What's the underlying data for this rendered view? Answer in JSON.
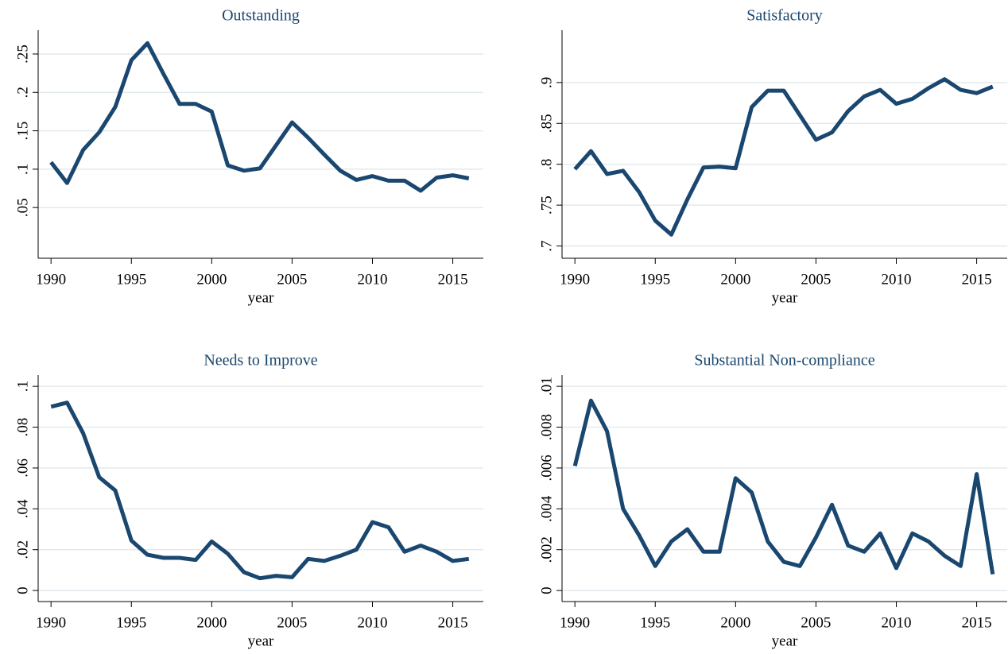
{
  "chart_data": [
    {
      "type": "line",
      "title": "Outstanding",
      "xlabel": "year",
      "color": "#1a476f",
      "grid": true,
      "x": [
        1990,
        1991,
        1992,
        1993,
        1994,
        1995,
        1996,
        1997,
        1998,
        1999,
        2000,
        2001,
        2002,
        2003,
        2004,
        2005,
        2006,
        2007,
        2008,
        2009,
        2010,
        2011,
        2012,
        2013,
        2014,
        2015,
        2016
      ],
      "values": [
        0.109,
        0.082,
        0.125,
        0.148,
        0.181,
        0.242,
        0.264,
        0.224,
        0.185,
        0.185,
        0.175,
        0.105,
        0.098,
        0.101,
        0.131,
        0.161,
        0.141,
        0.119,
        0.098,
        0.086,
        0.091,
        0.085,
        0.085,
        0.072,
        0.089,
        0.092,
        0.088
      ],
      "xlim": [
        1989.2,
        2016.9
      ],
      "xticks": [
        1990,
        1995,
        2000,
        2005,
        2010,
        2015
      ],
      "ylim": [
        -0.016,
        0.281
      ],
      "yticks": [
        {
          "value": 0.05,
          "label": ".05"
        },
        {
          "value": 0.1,
          "label": ".1"
        },
        {
          "value": 0.15,
          "label": ".15"
        },
        {
          "value": 0.2,
          "label": ".2"
        },
        {
          "value": 0.25,
          "label": ".25"
        }
      ]
    },
    {
      "type": "line",
      "title": "Satisfactory",
      "xlabel": "year",
      "color": "#1a476f",
      "grid": true,
      "x": [
        1990,
        1991,
        1992,
        1993,
        1994,
        1995,
        1996,
        1997,
        1998,
        1999,
        2000,
        2001,
        2002,
        2003,
        2004,
        2005,
        2006,
        2007,
        2008,
        2009,
        2010,
        2011,
        2012,
        2013,
        2014,
        2015,
        2016
      ],
      "values": [
        0.794,
        0.816,
        0.788,
        0.792,
        0.766,
        0.731,
        0.714,
        0.757,
        0.796,
        0.797,
        0.795,
        0.87,
        0.89,
        0.89,
        0.86,
        0.83,
        0.839,
        0.865,
        0.883,
        0.891,
        0.874,
        0.88,
        0.893,
        0.904,
        0.891,
        0.887,
        0.895
      ],
      "xlim": [
        1989.2,
        2016.9
      ],
      "xticks": [
        1990,
        1995,
        2000,
        2005,
        2010,
        2015
      ],
      "ylim": [
        0.685,
        0.964
      ],
      "yticks": [
        {
          "value": 0.7,
          "label": ".7"
        },
        {
          "value": 0.75,
          "label": ".75"
        },
        {
          "value": 0.8,
          "label": ".8"
        },
        {
          "value": 0.85,
          "label": ".85"
        },
        {
          "value": 0.9,
          "label": ".9"
        }
      ]
    },
    {
      "type": "line",
      "title": "Needs to Improve",
      "xlabel": "year",
      "color": "#1a476f",
      "grid": true,
      "x": [
        1990,
        1991,
        1992,
        1993,
        1994,
        1995,
        1996,
        1997,
        1998,
        1999,
        2000,
        2001,
        2002,
        2003,
        2004,
        2005,
        2006,
        2007,
        2008,
        2009,
        2010,
        2011,
        2012,
        2013,
        2014,
        2015,
        2016
      ],
      "values": [
        0.09,
        0.092,
        0.077,
        0.0555,
        0.049,
        0.0245,
        0.0175,
        0.016,
        0.016,
        0.015,
        0.024,
        0.018,
        0.009,
        0.006,
        0.0072,
        0.0065,
        0.0155,
        0.0145,
        0.017,
        0.02,
        0.0335,
        0.031,
        0.019,
        0.022,
        0.019,
        0.0145,
        0.0155
      ],
      "xlim": [
        1989.2,
        2016.9
      ],
      "xticks": [
        1990,
        1995,
        2000,
        2005,
        2010,
        2015
      ],
      "ylim": [
        -0.0054,
        0.1055
      ],
      "yticks": [
        0,
        {
          "value": 0.02,
          "label": ".02"
        },
        {
          "value": 0.04,
          "label": ".04"
        },
        {
          "value": 0.06,
          "label": ".06"
        },
        {
          "value": 0.08,
          "label": ".08"
        },
        {
          "value": 0.1,
          "label": ".1"
        }
      ]
    },
    {
      "type": "line",
      "title": "Substantial Non-compliance",
      "xlabel": "year",
      "color": "#1a476f",
      "grid": true,
      "x": [
        1990,
        1991,
        1992,
        1993,
        1994,
        1995,
        1996,
        1997,
        1998,
        1999,
        2000,
        2001,
        2002,
        2003,
        2004,
        2005,
        2006,
        2007,
        2008,
        2009,
        2010,
        2011,
        2012,
        2013,
        2014,
        2015,
        2016
      ],
      "values": [
        0.0061,
        0.0093,
        0.0078,
        0.004,
        0.0027,
        0.0012,
        0.0024,
        0.003,
        0.0019,
        0.0019,
        0.0055,
        0.0048,
        0.0024,
        0.0014,
        0.0012,
        0.0026,
        0.0042,
        0.0022,
        0.0019,
        0.0028,
        0.0011,
        0.0028,
        0.0024,
        0.0017,
        0.0012,
        0.0057,
        0.0008
      ],
      "xlim": [
        1989.2,
        2016.9
      ],
      "xticks": [
        1990,
        1995,
        2000,
        2005,
        2010,
        2015
      ],
      "ylim": [
        -0.00054,
        0.01055
      ],
      "yticks": [
        0,
        {
          "value": 0.002,
          "label": ".002"
        },
        {
          "value": 0.004,
          "label": ".004"
        },
        {
          "value": 0.006,
          "label": ".006"
        },
        {
          "value": 0.008,
          "label": ".008"
        },
        {
          "value": 0.01,
          "label": ".01"
        }
      ]
    }
  ]
}
